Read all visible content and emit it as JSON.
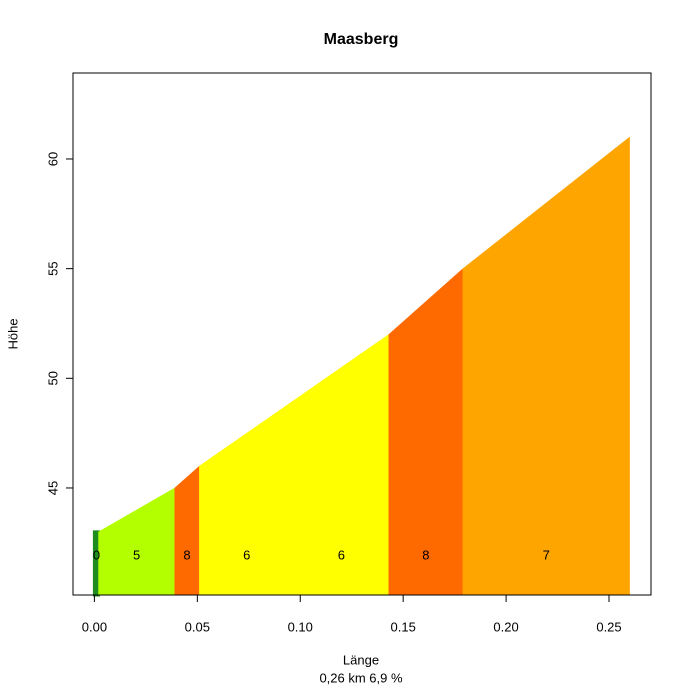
{
  "chart_data": {
    "type": "profile",
    "title": "Maasberg",
    "xlabel": "Länge",
    "subtitle": "0,26 km 6,9 %",
    "ylabel": "Höhe",
    "xlim": [
      -0.0104,
      0.2704
    ],
    "ylim": [
      40.12,
      63.92
    ],
    "xticks": [
      {
        "value": 0,
        "label": "0.00"
      },
      {
        "value": 0.05,
        "label": "0.05"
      },
      {
        "value": 0.1,
        "label": "0.10"
      },
      {
        "value": 0.15,
        "label": "0.15"
      },
      {
        "value": 0.2,
        "label": "0.20"
      },
      {
        "value": 0.25,
        "label": "0.25"
      }
    ],
    "yticks": [
      45,
      50,
      55,
      60
    ],
    "segments": [
      {
        "x": [
          0,
          0.002
        ],
        "y": [
          43,
          43
        ],
        "color": "#1e8c1e",
        "grade": 0
      },
      {
        "x": [
          0.002,
          0.039
        ],
        "y": [
          43,
          45
        ],
        "color": "#b3ff00",
        "grade": 5
      },
      {
        "x": [
          0.039,
          0.051
        ],
        "y": [
          45,
          46
        ],
        "color": "#ff6a00",
        "grade": 8
      },
      {
        "x": [
          0.051,
          0.097
        ],
        "y": [
          46,
          49
        ],
        "color": "#ffff00",
        "grade": 6
      },
      {
        "x": [
          0.097,
          0.143
        ],
        "y": [
          49,
          52
        ],
        "color": "#ffff00",
        "grade": 6
      },
      {
        "x": [
          0.143,
          0.179
        ],
        "y": [
          52,
          55
        ],
        "color": "#ff6a00",
        "grade": 8
      },
      {
        "x": [
          0.179,
          0.26
        ],
        "y": [
          55,
          61
        ],
        "color": "#ffa500",
        "grade": 7
      }
    ]
  }
}
